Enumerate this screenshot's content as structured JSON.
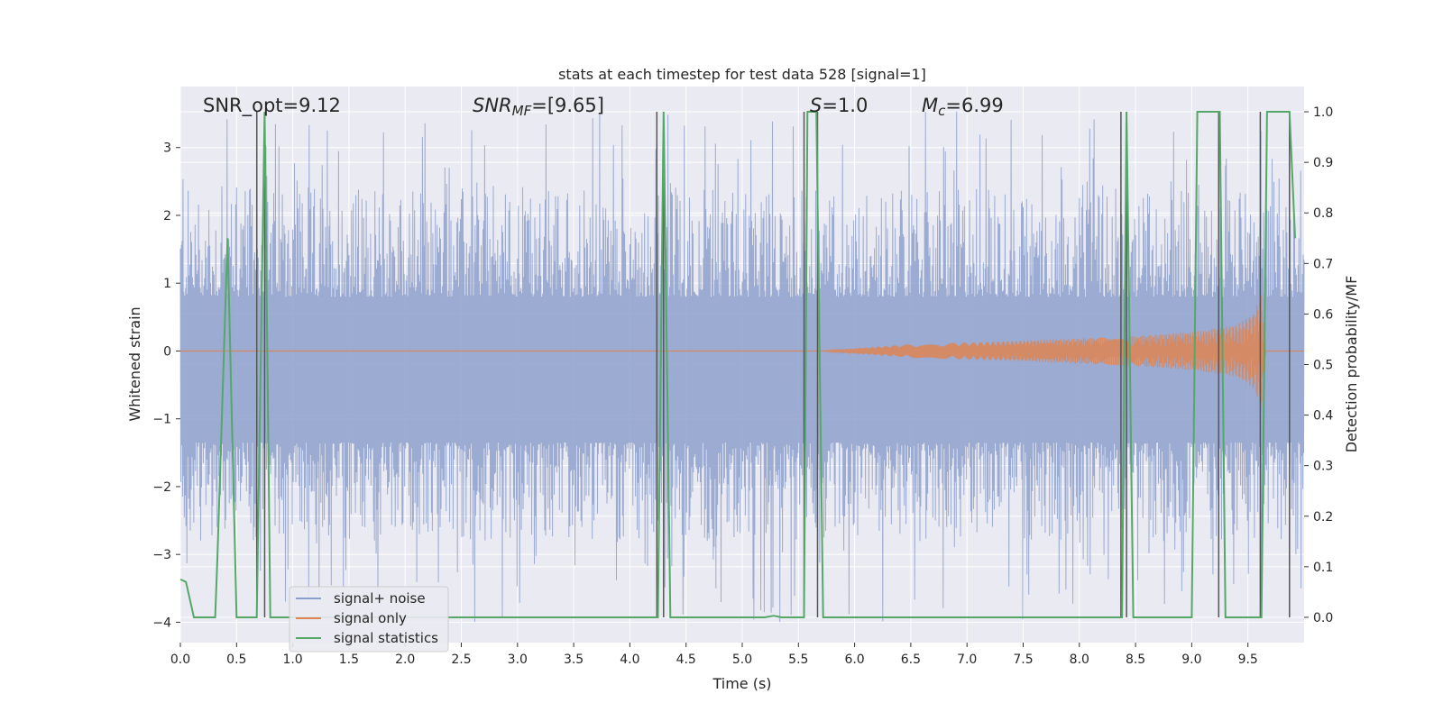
{
  "chart_data": {
    "type": "line",
    "title": "stats at each timestep for test data 528 [signal=1]",
    "xlabel": "Time (s)",
    "ylabel_left": "Whitened strain",
    "ylabel_right": "Detection probability/MF",
    "xlim": [
      0.0,
      10.0
    ],
    "ylim_left": [
      -4.3,
      3.9
    ],
    "ylim_right": [
      -0.05,
      1.05
    ],
    "x_ticks": [
      "0.0",
      "0.5",
      "1.0",
      "1.5",
      "2.0",
      "2.5",
      "3.0",
      "3.5",
      "4.0",
      "4.5",
      "5.0",
      "5.5",
      "6.0",
      "6.5",
      "7.0",
      "7.5",
      "8.0",
      "8.5",
      "9.0",
      "9.5"
    ],
    "y_left_ticks": [
      "3",
      "2",
      "1",
      "0",
      "−1",
      "−2",
      "−3",
      "−4"
    ],
    "y_right_ticks": [
      "1.0",
      "0.9",
      "0.8",
      "0.7",
      "0.6",
      "0.5",
      "0.4",
      "0.3",
      "0.2",
      "0.1",
      "0.0"
    ],
    "grid": true,
    "legend_position": "lower-left",
    "annotations": {
      "snr_opt": "SNR_opt=9.12",
      "snr_mf_label": "SNR",
      "snr_mf_sub": "MF",
      "snr_mf_value": "=[9.65]",
      "s_label": "S",
      "s_value": "=1.0",
      "mc_label": "M",
      "mc_sub": "c",
      "mc_value": "=6.99"
    },
    "series": [
      {
        "name": "signal+ noise",
        "color": "#8da0cb",
        "axis": "left",
        "description_values": {
          "band_low": -1.85,
          "band_high": 1.3,
          "max_spike": 3.55,
          "min_spike": -4.0
        }
      },
      {
        "name": "signal only",
        "color": "#dd8452",
        "axis": "left",
        "envelope": {
          "x": [
            5.7,
            6.5,
            7.5,
            8.5,
            9.0,
            9.4,
            9.55,
            9.63,
            9.66
          ],
          "amp": [
            0.0,
            0.1,
            0.15,
            0.22,
            0.28,
            0.38,
            0.55,
            0.9,
            0.0
          ]
        }
      },
      {
        "name": "signal statistics",
        "color": "#55a868",
        "axis": "right",
        "x": [
          0.0,
          0.05,
          0.12,
          0.31,
          0.33,
          0.42,
          0.5,
          0.68,
          0.75,
          0.8,
          4.25,
          4.3,
          4.36,
          5.2,
          5.28,
          5.35,
          5.55,
          5.58,
          5.66,
          5.72,
          8.38,
          8.42,
          8.48,
          9.0,
          9.05,
          9.25,
          9.3,
          9.62,
          9.67,
          9.87,
          9.92
        ],
        "y": [
          0.075,
          0.07,
          0.0,
          0.0,
          0.12,
          0.75,
          0.0,
          0.0,
          1.0,
          0.0,
          0.0,
          1.0,
          0.0,
          0.0,
          0.003,
          0.0,
          0.0,
          1.0,
          1.0,
          0.0,
          0.0,
          1.0,
          0.0,
          0.0,
          1.0,
          1.0,
          0.0,
          0.0,
          1.0,
          1.0,
          0.75
        ]
      }
    ],
    "mf_lines": {
      "color": "#555555",
      "x": [
        0.68,
        0.75,
        4.24,
        4.3,
        5.55,
        5.67,
        8.37,
        8.42,
        9.24,
        9.61,
        9.87
      ],
      "y": [
        1.0,
        1.0,
        1.0,
        1.0,
        1.0,
        1.0,
        1.0,
        1.0,
        0.0,
        1.0,
        0.0
      ]
    }
  }
}
